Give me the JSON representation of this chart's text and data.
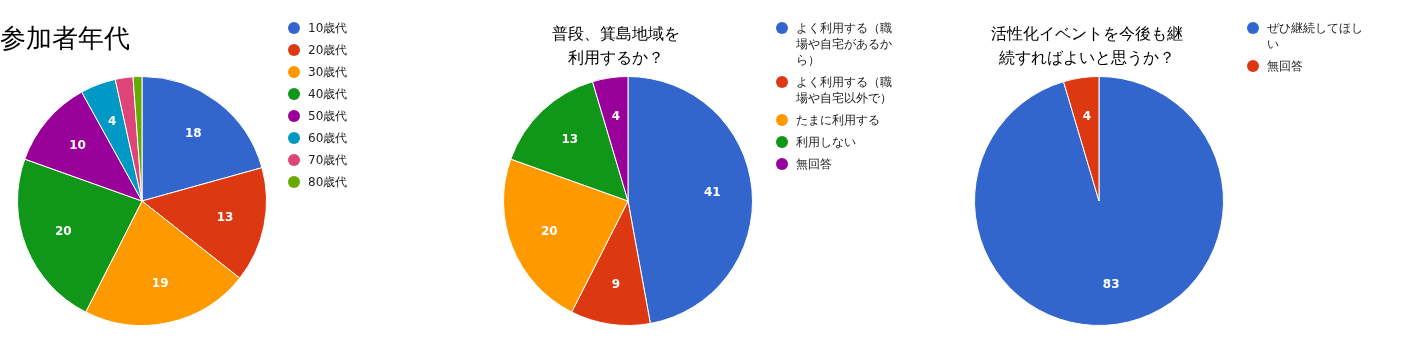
{
  "chart_data": [
    {
      "type": "pie",
      "title": "参加者年代",
      "categories": [
        "10歳代",
        "20歳代",
        "30歳代",
        "40歳代",
        "50歳代",
        "60歳代",
        "70歳代",
        "80歳代"
      ],
      "values": [
        18,
        13,
        19,
        20,
        10,
        4,
        2,
        1
      ],
      "colors": [
        "#3366cc",
        "#dc3912",
        "#ff9900",
        "#109618",
        "#990099",
        "#0099c6",
        "#dd4477",
        "#66aa00"
      ],
      "value_labels": [
        "18",
        "13",
        "19",
        "20",
        "10",
        "4",
        null,
        null
      ],
      "legend": "right"
    },
    {
      "type": "pie",
      "title": "普段、箕島地域を利用するか？",
      "categories": [
        "よく利用する（職場や自宅があるから）",
        "よく利用する（職場や自宅以外で）",
        "たまに利用する",
        "利用しない",
        "無回答"
      ],
      "values": [
        41,
        9,
        20,
        13,
        4
      ],
      "colors": [
        "#3366cc",
        "#dc3912",
        "#ff9900",
        "#109618",
        "#990099"
      ],
      "data_labels": true,
      "legend": "right"
    },
    {
      "type": "pie",
      "title": "活性化イベントを今後も継続すればよいと思うか？",
      "categories": [
        "ぜひ継続してほしい",
        "無回答"
      ],
      "values": [
        83,
        4
      ],
      "colors": [
        "#3366cc",
        "#dc3912"
      ],
      "data_labels": true,
      "legend": "right"
    }
  ]
}
